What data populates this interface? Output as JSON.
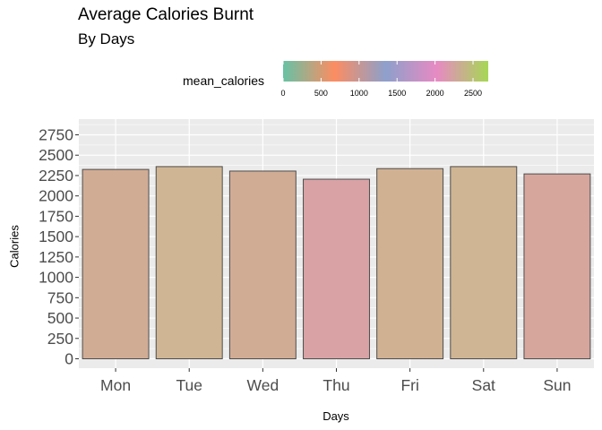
{
  "chart_data": {
    "type": "bar",
    "title": "Average Calories Burnt",
    "subtitle": "By Days",
    "xlabel": "Days",
    "ylabel": "Calories",
    "categories": [
      "Mon",
      "Tue",
      "Wed",
      "Thu",
      "Fri",
      "Sat",
      "Sun"
    ],
    "values": [
      2325,
      2360,
      2305,
      2205,
      2335,
      2360,
      2270
    ],
    "ylim": [
      0,
      2875
    ],
    "yticks": [
      0,
      250,
      500,
      750,
      1000,
      1250,
      1500,
      1750,
      2000,
      2250,
      2500,
      2750
    ],
    "grid": true,
    "legend": {
      "title": "mean_calories",
      "placement": "top",
      "ticks": [
        0,
        500,
        1000,
        1500,
        2000,
        2500
      ],
      "range": [
        0,
        2700
      ],
      "colors": [
        "#66c2a5",
        "#fc8d62",
        "#8da0cb",
        "#e78ac3",
        "#a6d854"
      ]
    },
    "bar_colors": [
      "#d1ac94",
      "#cfb593",
      "#d1ac95",
      "#d9a3a6",
      "#d0b192",
      "#cfb593",
      "#d6a69d"
    ],
    "bar_outline": "#4d4d4d",
    "panel_bg": "#ebebeb",
    "grid_color": "#ffffff"
  }
}
